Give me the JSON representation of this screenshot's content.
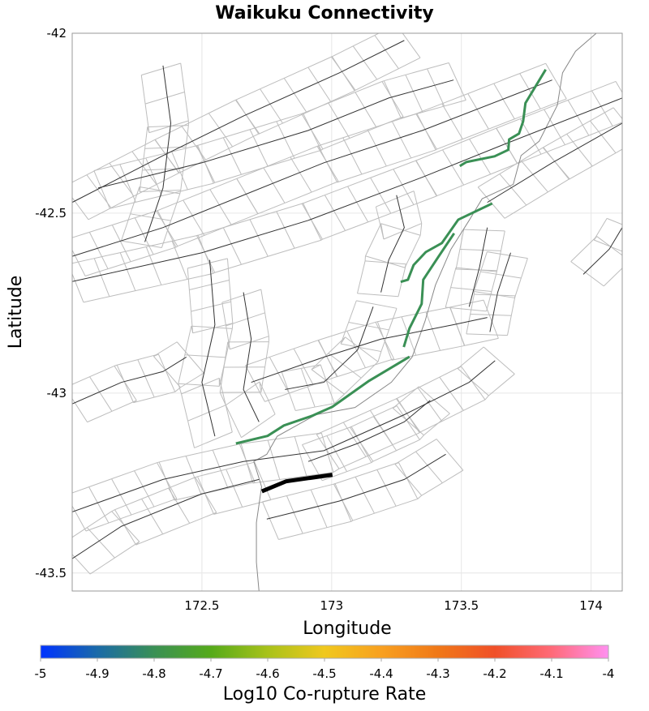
{
  "chart_data": {
    "type": "map",
    "title": "Waikuku Connectivity",
    "xlabel": "Longitude",
    "ylabel": "Latitude",
    "xlim": [
      172.0,
      174.12
    ],
    "ylim": [
      -43.55,
      -42.0
    ],
    "xticks": [
      172.5,
      173,
      173.5,
      174
    ],
    "xtick_labels": [
      "172.5",
      "173",
      "173.5",
      "174"
    ],
    "yticks": [
      -42,
      -42.5,
      -43,
      -43.5
    ],
    "ytick_labels": [
      "-42",
      "-42.5",
      "-43",
      "-43.5"
    ],
    "grid": true,
    "colorbar": {
      "label": "Log10 Co-rupture Rate",
      "range": [
        -5,
        -4
      ],
      "tick_labels": [
        "-5",
        "-4.9",
        "-4.8",
        "-4.7",
        "-4.6",
        "-4.5",
        "-4.4",
        "-4.3",
        "-4.2",
        "-4.1",
        "-4"
      ],
      "stops": [
        "#0033ff",
        "#1a6aa8",
        "#3a9055",
        "#55aa1a",
        "#a8c21a",
        "#f0c81e",
        "#f8a020",
        "#f07818",
        "#f05028",
        "#ff6a78",
        "#ff90f0"
      ]
    },
    "source_rupture": {
      "name": "Waikuku",
      "color": "#000000",
      "trace": [
        [
          172.731,
          -43.273
        ],
        [
          172.825,
          -43.245
        ],
        [
          173.003,
          -43.227
        ]
      ]
    },
    "connected_ruptures": [
      {
        "log10_rate": -4.8,
        "color": "#3a9055",
        "trace": [
          [
            172.631,
            -43.14
          ],
          [
            172.753,
            -43.119
          ],
          [
            172.816,
            -43.09
          ],
          [
            172.925,
            -43.063
          ],
          [
            173.003,
            -43.038
          ],
          [
            173.144,
            -42.966
          ],
          [
            173.3,
            -42.899
          ]
        ]
      },
      {
        "log10_rate": -4.8,
        "color": "#3a9055",
        "trace": [
          [
            173.278,
            -42.872
          ],
          [
            173.3,
            -42.82
          ],
          [
            173.347,
            -42.752
          ],
          [
            173.353,
            -42.685
          ],
          [
            173.409,
            -42.624
          ],
          [
            173.472,
            -42.556
          ]
        ]
      },
      {
        "log10_rate": -4.8,
        "color": "#3a9055",
        "trace": [
          [
            173.266,
            -42.691
          ],
          [
            173.294,
            -42.685
          ],
          [
            173.316,
            -42.644
          ],
          [
            173.363,
            -42.608
          ],
          [
            173.425,
            -42.583
          ],
          [
            173.488,
            -42.518
          ],
          [
            173.619,
            -42.473
          ]
        ]
      },
      {
        "log10_rate": -4.8,
        "color": "#3a9055",
        "trace": [
          [
            173.494,
            -42.369
          ],
          [
            173.519,
            -42.358
          ],
          [
            173.628,
            -42.342
          ],
          [
            173.681,
            -42.324
          ],
          [
            173.684,
            -42.295
          ],
          [
            173.722,
            -42.279
          ],
          [
            173.738,
            -42.245
          ],
          [
            173.747,
            -42.194
          ],
          [
            173.825,
            -42.101
          ]
        ]
      }
    ],
    "fault_traces": [
      [
        [
          172.0,
          -42.47
        ],
        [
          172.35,
          -42.34
        ],
        [
          172.66,
          -42.23
        ],
        [
          173.03,
          -42.11
        ],
        [
          173.28,
          -42.02
        ]
      ],
      [
        [
          172.0,
          -42.62
        ],
        [
          172.35,
          -42.54
        ],
        [
          172.66,
          -42.45
        ],
        [
          172.97,
          -42.36
        ],
        [
          173.35,
          -42.27
        ],
        [
          173.85,
          -42.13
        ]
      ],
      [
        [
          172.0,
          -42.69
        ],
        [
          172.5,
          -42.61
        ],
        [
          172.91,
          -42.52
        ],
        [
          173.35,
          -42.4
        ],
        [
          173.66,
          -42.31
        ],
        [
          174.12,
          -42.18
        ]
      ],
      [
        [
          172.1,
          -42.43
        ],
        [
          172.5,
          -42.36
        ],
        [
          172.91,
          -42.27
        ],
        [
          173.22,
          -42.18
        ],
        [
          173.47,
          -42.13
        ]
      ],
      [
        [
          173.6,
          -42.47
        ],
        [
          173.85,
          -42.36
        ],
        [
          174.12,
          -42.25
        ]
      ],
      [
        [
          172.69,
          -42.97
        ],
        [
          172.97,
          -42.9
        ],
        [
          173.19,
          -42.85
        ],
        [
          173.47,
          -42.81
        ],
        [
          173.6,
          -42.79
        ]
      ],
      [
        [
          172.0,
          -43.33
        ],
        [
          172.35,
          -43.24
        ],
        [
          172.66,
          -43.19
        ],
        [
          172.97,
          -43.16
        ],
        [
          173.28,
          -43.06
        ],
        [
          173.53,
          -42.97
        ],
        [
          173.63,
          -42.91
        ]
      ],
      [
        [
          172.0,
          -43.46
        ],
        [
          172.19,
          -43.37
        ],
        [
          172.5,
          -43.28
        ],
        [
          172.72,
          -43.24
        ]
      ],
      [
        [
          172.75,
          -43.35
        ],
        [
          173.03,
          -43.3
        ],
        [
          173.28,
          -43.24
        ],
        [
          173.44,
          -43.17
        ]
      ],
      [
        [
          172.91,
          -43.19
        ],
        [
          173.1,
          -43.14
        ],
        [
          173.28,
          -43.08
        ],
        [
          173.38,
          -43.02
        ]
      ],
      [
        [
          172.53,
          -42.63
        ],
        [
          172.55,
          -42.81
        ],
        [
          172.5,
          -42.97
        ],
        [
          172.55,
          -43.12
        ]
      ],
      [
        [
          173.6,
          -42.54
        ],
        [
          173.57,
          -42.65
        ],
        [
          173.53,
          -42.76
        ]
      ],
      [
        [
          173.69,
          -42.61
        ],
        [
          173.64,
          -42.72
        ],
        [
          173.61,
          -42.83
        ]
      ],
      [
        [
          173.97,
          -42.67
        ],
        [
          174.07,
          -42.6
        ],
        [
          174.12,
          -42.54
        ]
      ],
      [
        [
          173.25,
          -42.45
        ],
        [
          173.28,
          -42.54
        ],
        [
          173.22,
          -42.63
        ],
        [
          173.19,
          -42.72
        ]
      ],
      [
        [
          172.35,
          -42.09
        ],
        [
          172.38,
          -42.25
        ],
        [
          172.35,
          -42.43
        ],
        [
          172.28,
          -42.58
        ]
      ],
      [
        [
          172.0,
          -43.03
        ],
        [
          172.19,
          -42.97
        ],
        [
          172.35,
          -42.94
        ],
        [
          172.44,
          -42.9
        ]
      ],
      [
        [
          172.66,
          -42.72
        ],
        [
          172.69,
          -42.85
        ],
        [
          172.66,
          -42.99
        ],
        [
          172.72,
          -43.08
        ]
      ],
      [
        [
          172.82,
          -42.99
        ],
        [
          172.97,
          -42.97
        ],
        [
          173.1,
          -42.88
        ],
        [
          173.16,
          -42.76
        ]
      ]
    ],
    "coastline": [
      [
        172.72,
        -43.55
      ],
      [
        172.71,
        -43.47
      ],
      [
        172.71,
        -43.36
      ],
      [
        172.73,
        -43.26
      ],
      [
        172.7,
        -43.19
      ],
      [
        172.75,
        -43.17
      ],
      [
        172.79,
        -43.12
      ],
      [
        172.94,
        -43.06
      ],
      [
        173.09,
        -43.04
      ],
      [
        173.23,
        -42.97
      ],
      [
        173.31,
        -42.9
      ],
      [
        173.36,
        -42.8
      ],
      [
        173.4,
        -42.7
      ],
      [
        173.46,
        -42.6
      ],
      [
        173.53,
        -42.52
      ],
      [
        173.58,
        -42.46
      ],
      [
        173.7,
        -42.42
      ],
      [
        173.73,
        -42.34
      ],
      [
        173.8,
        -42.3
      ],
      [
        173.87,
        -42.2
      ],
      [
        173.89,
        -42.11
      ],
      [
        173.94,
        -42.05
      ],
      [
        174.02,
        -42.0
      ]
    ]
  }
}
